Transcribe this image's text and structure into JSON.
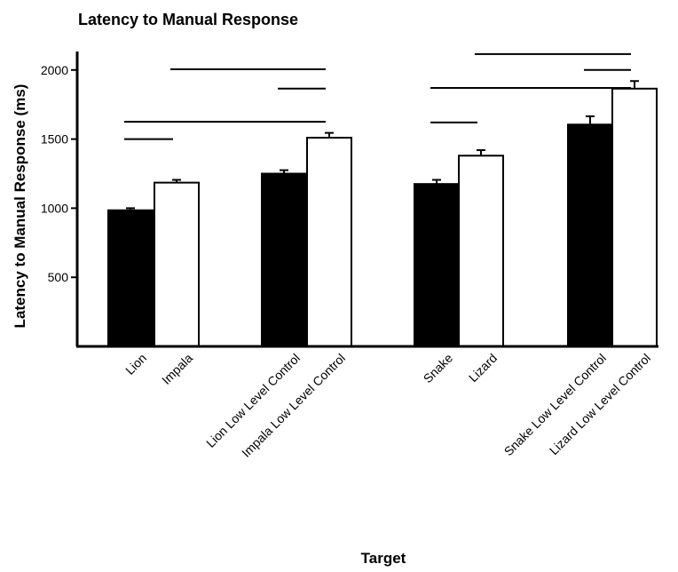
{
  "chart_data": {
    "type": "bar",
    "title": "Latency to Manual Response",
    "xlabel": "Target",
    "ylabel": "Latency to Manual Response (ms)",
    "ylim": [
      0,
      2150
    ],
    "yticks": [
      500,
      1000,
      1500,
      2000
    ],
    "grid": false,
    "legend": "none",
    "categories": [
      "Lion",
      "Impala",
      "Lion Low Level Control",
      "Impala Low Level Control",
      "Snake",
      "Lizard",
      "Snake Low Level Control",
      "Lizard Low Level Control"
    ],
    "values": [
      985,
      1185,
      1250,
      1510,
      1175,
      1380,
      1605,
      1865
    ],
    "errors": [
      15,
      20,
      25,
      35,
      30,
      40,
      60,
      55
    ],
    "bar_colors": [
      "#000000",
      "#ffffff",
      "#000000",
      "#ffffff",
      "#000000",
      "#ffffff",
      "#000000",
      "#ffffff"
    ],
    "significance_lines": [
      {
        "from": 0,
        "to": 1,
        "level": 1500
      },
      {
        "from": 0,
        "to": 3,
        "level": 1625
      },
      {
        "from": 2,
        "to": 3,
        "level": 1865
      },
      {
        "from": 1,
        "to": 3,
        "level": 2005
      },
      {
        "from": 4,
        "to": 5,
        "level": 1620
      },
      {
        "from": 4,
        "to": 7,
        "level": 1870
      },
      {
        "from": 6,
        "to": 7,
        "level": 2000
      },
      {
        "from": 5,
        "to": 7,
        "level": 2115
      }
    ]
  }
}
